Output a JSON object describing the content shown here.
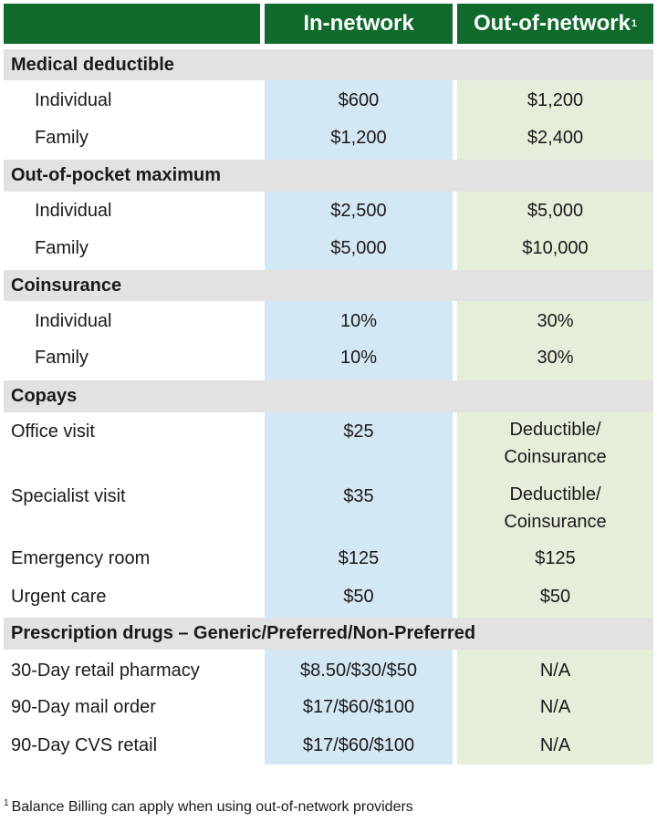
{
  "header": {
    "in_network": "In-network",
    "out_network": "Out-of-network",
    "out_network_note_mark": "1"
  },
  "sections": {
    "deductible": {
      "title": "Medical deductible",
      "rows": [
        {
          "label": "Individual",
          "in": "$600",
          "out": "$1,200"
        },
        {
          "label": "Family",
          "in": "$1,200",
          "out": "$2,400"
        }
      ]
    },
    "oop": {
      "title": "Out-of-pocket maximum",
      "rows": [
        {
          "label": "Individual",
          "in": "$2,500",
          "out": "$5,000"
        },
        {
          "label": "Family",
          "in": "$5,000",
          "out": "$10,000"
        }
      ]
    },
    "coinsurance": {
      "title": "Coinsurance",
      "rows": [
        {
          "label": "Individual",
          "in": "10%",
          "out": "30%"
        },
        {
          "label": "Family",
          "in": "10%",
          "out": "30%"
        }
      ]
    },
    "copays": {
      "title": "Copays",
      "rows": [
        {
          "label": "Office visit",
          "in": "$25",
          "out_line1": "Deductible/",
          "out_line2": "Coinsurance"
        },
        {
          "label": "Specialist visit",
          "in": "$35",
          "out_line1": "Deductible/",
          "out_line2": "Coinsurance"
        },
        {
          "label": "Emergency room",
          "in": "$125",
          "out": "$125"
        },
        {
          "label": "Urgent care",
          "in": "$50",
          "out": "$50"
        }
      ]
    },
    "rx": {
      "title": "Prescription drugs – Generic/Preferred/Non-Preferred",
      "rows": [
        {
          "label": "30-Day retail pharmacy",
          "in": "$8.50/$30/$50",
          "out": "N/A"
        },
        {
          "label": "90-Day mail order",
          "in": "$17/$60/$100",
          "out": "N/A"
        },
        {
          "label": "90-Day CVS retail",
          "in": "$17/$60/$100",
          "out": "N/A"
        }
      ]
    }
  },
  "footnote": {
    "mark": "1",
    "text": "Balance Billing can apply when using out-of-network providers"
  },
  "colors": {
    "header_green": "#0f6a2c",
    "in_network_fill": "#d4e7f5",
    "out_network_fill": "#e4eed9",
    "section_gray": "#e2e2e2"
  }
}
